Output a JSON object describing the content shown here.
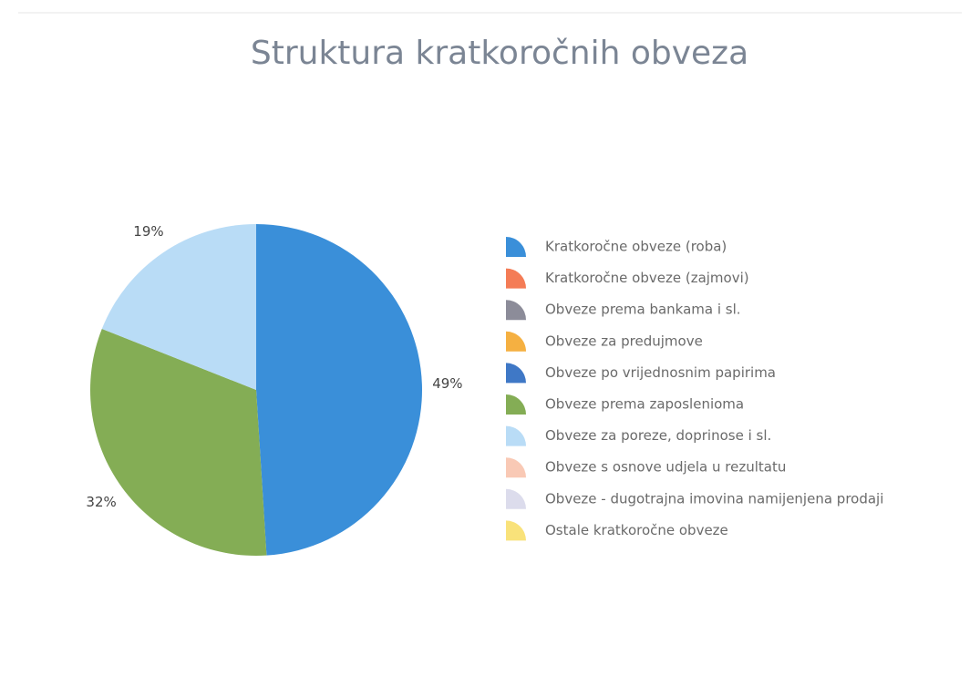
{
  "chart_data": {
    "type": "pie",
    "title": "Struktura kratkoročnih obveza",
    "categories": [
      "Kratkoročne obveze (roba)",
      "Kratkoročne obveze (zajmovi)",
      "Obveze prema bankama i sl.",
      "Obveze za predujmove",
      "Obveze po vrijednosnim papirima",
      "Obveze prema zaposlenioma",
      "Obveze za poreze, doprinose i sl.",
      "Obveze s osnove udjela u rezultatu",
      "Obveze - dugotrajna imovina namijenjena prodaji",
      "Ostale kratkoročne obveze"
    ],
    "values": [
      49,
      0,
      0,
      0,
      0,
      32,
      19,
      0,
      0,
      0
    ],
    "value_labels": [
      "49%",
      null,
      null,
      null,
      null,
      "32%",
      "19%",
      null,
      null,
      null
    ],
    "colors": [
      "#3a8fd9",
      "#f47c56",
      "#8c8c99",
      "#f5b041",
      "#3f78c6",
      "#84ad55",
      "#b9dcf6",
      "#f9c9b5",
      "#dcdcec",
      "#f9e27a"
    ],
    "legend": "right"
  }
}
